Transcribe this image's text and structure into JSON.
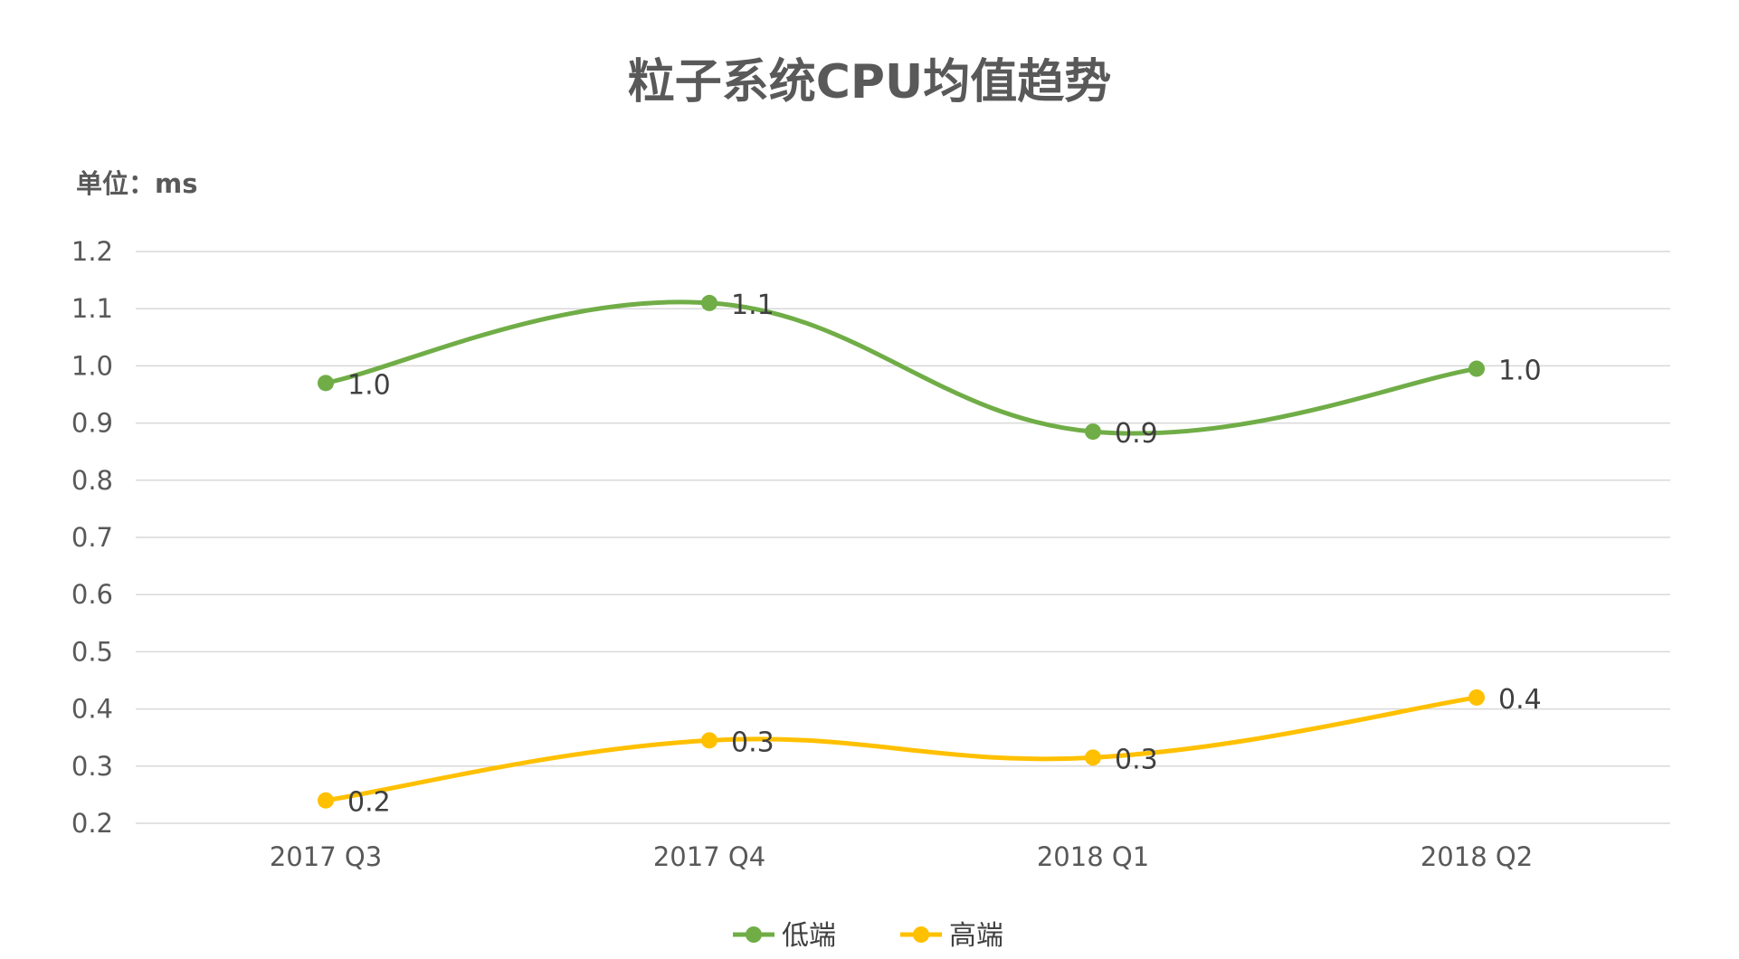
{
  "chart_data": {
    "type": "line",
    "title": "粒子系统CPU均值趋势",
    "unit_label": "单位：ms",
    "categories": [
      "2017 Q3",
      "2017 Q4",
      "2018 Q1",
      "2018 Q2"
    ],
    "ylim": [
      0.2,
      1.2
    ],
    "yticks": [
      "0.2",
      "0.3",
      "0.4",
      "0.5",
      "0.6",
      "0.7",
      "0.8",
      "0.9",
      "1.0",
      "1.1",
      "1.2"
    ],
    "grid": true,
    "smooth": true,
    "legend_position": "bottom",
    "series": [
      {
        "name": "低端",
        "color": "#70AD47",
        "values": [
          0.97,
          1.11,
          0.885,
          0.995
        ],
        "labels": [
          "1.0",
          "1.1",
          "0.9",
          "1.0"
        ]
      },
      {
        "name": "高端",
        "color": "#FFC000",
        "values": [
          0.24,
          0.345,
          0.315,
          0.42
        ],
        "labels": [
          "0.2",
          "0.3",
          "0.3",
          "0.4"
        ]
      }
    ]
  }
}
